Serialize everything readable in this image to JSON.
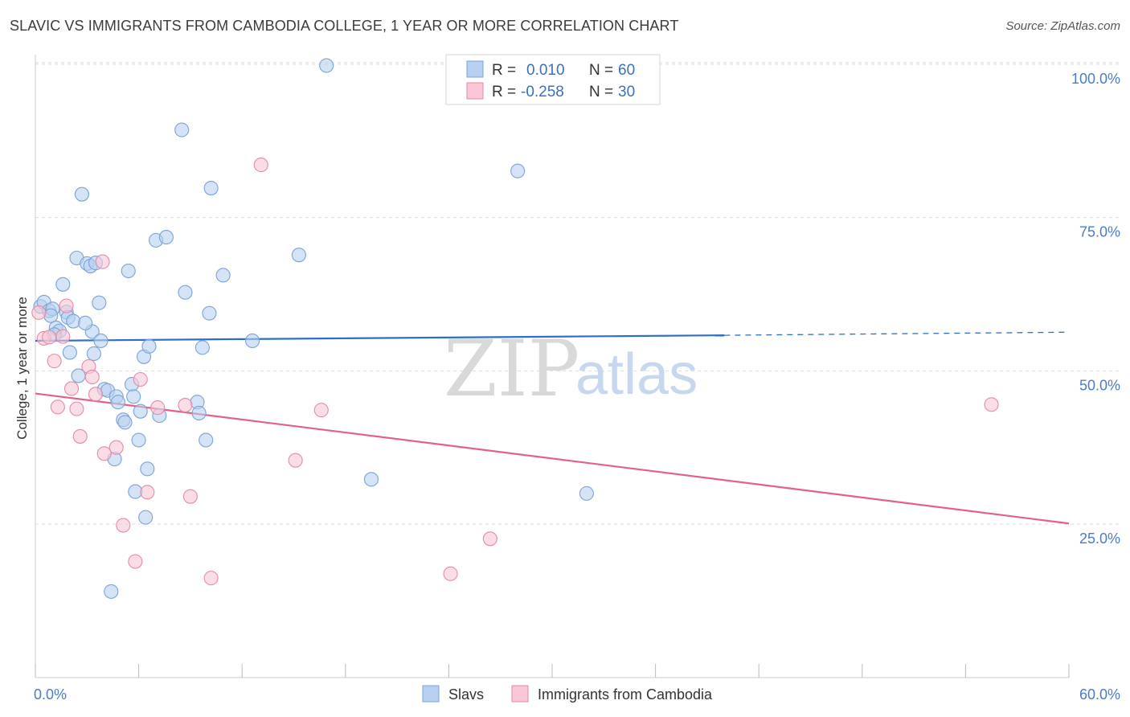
{
  "header": {
    "title": "SLAVIC VS IMMIGRANTS FROM CAMBODIA COLLEGE, 1 YEAR OR MORE CORRELATION CHART",
    "source": "Source: ZipAtlas.com"
  },
  "watermark": {
    "zip": "ZIP",
    "atlas": "atlas"
  },
  "legend": {
    "rows": [
      {
        "r_label": "R =",
        "r_value": "0.010",
        "n_label": "N =",
        "n_value": "60"
      },
      {
        "r_label": "R =",
        "r_value": "-0.258",
        "n_label": "N =",
        "n_value": "30"
      }
    ]
  },
  "colors": {
    "slavs_fill": "#b8d0f0",
    "slavs_stroke": "#7aa3d8",
    "slavs_line": "#2f6ec8",
    "cambodia_fill": "#f8c6d6",
    "cambodia_stroke": "#e58aa8",
    "cambodia_line": "#e0608e",
    "grid": "#dddddd",
    "tick_label": "#4a7bc8"
  },
  "chart_data": {
    "type": "scatter",
    "title": "SLAVIC VS IMMIGRANTS FROM CAMBODIA COLLEGE, 1 YEAR OR MORE CORRELATION CHART",
    "xlabel": "",
    "ylabel": "College, 1 year or more",
    "xlim": [
      0,
      60
    ],
    "ylim": [
      0,
      102
    ],
    "x_ticks": [
      "0.0%",
      "60.0%"
    ],
    "y_ticks": [
      {
        "value": 25,
        "label": "25.0%"
      },
      {
        "value": 50,
        "label": "50.0%"
      },
      {
        "value": 75,
        "label": "75.0%"
      },
      {
        "value": 100,
        "label": "100.0%"
      }
    ],
    "grid": true,
    "legend_position": "top-center",
    "series": [
      {
        "name": "Slavs",
        "r": 0.01,
        "n": 60,
        "trend": {
          "x0": 0,
          "y0": 54.9,
          "x1": 40,
          "y1": 55.8,
          "dashed_to_x": 60,
          "dashed_to_y": 56.3
        },
        "points": [
          [
            0.3,
            60.5
          ],
          [
            0.5,
            61.2
          ],
          [
            0.8,
            59.8
          ],
          [
            1.0,
            60.1
          ],
          [
            0.9,
            59.0
          ],
          [
            1.2,
            57.0
          ],
          [
            1.4,
            56.5
          ],
          [
            1.6,
            64.1
          ],
          [
            1.8,
            59.6
          ],
          [
            1.9,
            58.7
          ],
          [
            2.0,
            53.0
          ],
          [
            2.2,
            58.1
          ],
          [
            2.4,
            68.4
          ],
          [
            2.5,
            49.2
          ],
          [
            2.7,
            78.8
          ],
          [
            3.0,
            67.5
          ],
          [
            3.2,
            67.1
          ],
          [
            3.3,
            56.4
          ],
          [
            3.4,
            52.8
          ],
          [
            3.5,
            67.6
          ],
          [
            3.7,
            61.1
          ],
          [
            3.8,
            54.9
          ],
          [
            4.0,
            47.0
          ],
          [
            4.2,
            46.8
          ],
          [
            4.4,
            14.0
          ],
          [
            4.6,
            35.6
          ],
          [
            4.7,
            45.8
          ],
          [
            4.8,
            44.9
          ],
          [
            5.1,
            42.0
          ],
          [
            5.2,
            41.6
          ],
          [
            5.4,
            66.3
          ],
          [
            5.6,
            47.8
          ],
          [
            5.7,
            45.8
          ],
          [
            5.8,
            30.3
          ],
          [
            6.0,
            38.7
          ],
          [
            6.1,
            43.4
          ],
          [
            6.3,
            52.3
          ],
          [
            6.4,
            26.1
          ],
          [
            6.5,
            34.0
          ],
          [
            6.6,
            54.0
          ],
          [
            7.0,
            71.3
          ],
          [
            7.2,
            42.7
          ],
          [
            7.6,
            71.8
          ],
          [
            8.5,
            89.3
          ],
          [
            8.7,
            62.8
          ],
          [
            9.4,
            44.9
          ],
          [
            9.5,
            43.1
          ],
          [
            9.7,
            53.8
          ],
          [
            9.9,
            38.7
          ],
          [
            10.1,
            59.4
          ],
          [
            10.2,
            79.8
          ],
          [
            10.9,
            65.6
          ],
          [
            12.6,
            54.9
          ],
          [
            15.3,
            68.9
          ],
          [
            16.9,
            99.8
          ],
          [
            19.5,
            32.3
          ],
          [
            28.0,
            82.6
          ],
          [
            32.0,
            30.0
          ],
          [
            1.1,
            55.9
          ],
          [
            2.9,
            57.8
          ]
        ]
      },
      {
        "name": "Immigrants from Cambodia",
        "r": -0.258,
        "n": 30,
        "trend": {
          "x0": 0,
          "y0": 46.3,
          "x1": 60,
          "y1": 25.1
        },
        "points": [
          [
            0.2,
            59.5
          ],
          [
            0.5,
            55.3
          ],
          [
            0.8,
            55.5
          ],
          [
            1.1,
            51.6
          ],
          [
            1.3,
            44.1
          ],
          [
            1.6,
            55.6
          ],
          [
            1.8,
            60.6
          ],
          [
            2.1,
            47.1
          ],
          [
            2.4,
            43.8
          ],
          [
            2.6,
            39.3
          ],
          [
            3.1,
            50.7
          ],
          [
            3.3,
            49.0
          ],
          [
            3.5,
            46.2
          ],
          [
            3.9,
            67.8
          ],
          [
            4.0,
            36.5
          ],
          [
            4.7,
            37.5
          ],
          [
            5.1,
            24.8
          ],
          [
            5.8,
            18.9
          ],
          [
            6.1,
            48.6
          ],
          [
            6.5,
            30.2
          ],
          [
            7.1,
            44.0
          ],
          [
            8.7,
            44.4
          ],
          [
            9.0,
            29.5
          ],
          [
            10.2,
            16.2
          ],
          [
            13.1,
            83.6
          ],
          [
            15.1,
            35.4
          ],
          [
            16.6,
            43.6
          ],
          [
            24.1,
            16.9
          ],
          [
            26.4,
            22.6
          ],
          [
            55.5,
            44.5
          ]
        ]
      }
    ]
  }
}
